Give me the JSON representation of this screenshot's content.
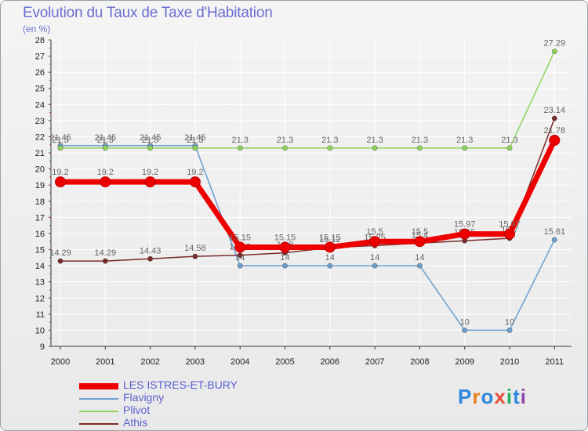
{
  "title": "Evolution du Taux de Taxe d'Habitation",
  "unit": "(en %)",
  "logo": {
    "text": "Proxiti",
    "colors": [
      "#2e86de",
      "#e67e22",
      "#2e86de",
      "#e74c3c",
      "#27ae60",
      "#2e86de",
      "#8e44ad"
    ]
  },
  "chart_data": {
    "type": "line",
    "x": [
      "2000",
      "2001",
      "2002",
      "2003",
      "2004",
      "2005",
      "2006",
      "2007",
      "2008",
      "2009",
      "2010",
      "2011"
    ],
    "ylim": [
      9,
      28
    ],
    "yticks": [
      9,
      10,
      11,
      12,
      13,
      14,
      15,
      16,
      17,
      18,
      19,
      20,
      21,
      22,
      23,
      24,
      25,
      26,
      27,
      28
    ],
    "grid": true,
    "legend_position": "bottom-left",
    "series": [
      {
        "name": "Flavigny",
        "color": "#6a9fd0",
        "width": 1.5,
        "values": [
          21.45,
          21.45,
          21.45,
          21.45,
          14,
          14,
          14,
          14,
          14,
          10,
          10,
          15.61
        ],
        "labels": [
          "21.45",
          "21.45",
          "21.45",
          "21.45",
          "14",
          "14",
          "14",
          "14",
          "14",
          "10",
          "10",
          "15.61"
        ]
      },
      {
        "name": "Plivot",
        "color": "#8ed45a",
        "width": 1.5,
        "values": [
          21.3,
          21.3,
          21.3,
          21.3,
          21.3,
          21.3,
          21.3,
          21.3,
          21.3,
          21.3,
          21.3,
          27.29
        ],
        "labels": [
          "21.3",
          "21.3",
          "21.3",
          "21.3",
          "21.3",
          "21.3",
          "21.3",
          "21.3",
          "21.3",
          "21.3",
          "21.3",
          "27.29"
        ]
      },
      {
        "name": "Athis",
        "color": "#7a2a2a",
        "width": 1.5,
        "values": [
          14.29,
          14.29,
          14.43,
          14.58,
          14.65,
          14.8,
          15.12,
          15.25,
          15.4,
          15.55,
          15.7,
          23.14
        ],
        "labels": [
          "14.29",
          "14.29",
          "14.43",
          "14.58",
          "14.65",
          "14.8",
          "15.12",
          "15.25",
          "15.4",
          "15.55",
          "15.7",
          "23.14"
        ]
      },
      {
        "name": "LES ISTRES-ET-BURY",
        "color": "#ee0000",
        "width": 7,
        "values": [
          19.2,
          19.2,
          19.2,
          19.2,
          15.15,
          15.15,
          15.15,
          15.5,
          15.5,
          15.97,
          15.97,
          21.78
        ],
        "labels": [
          "19.2",
          "19.2",
          "19.2",
          "19.2",
          "15.15",
          "15.15",
          "15.15",
          "15.5",
          "15.5",
          "15.97",
          "15.97",
          "21.78"
        ]
      }
    ],
    "legend_order": [
      "LES ISTRES-ET-BURY",
      "Flavigny",
      "Plivot",
      "Athis"
    ]
  }
}
